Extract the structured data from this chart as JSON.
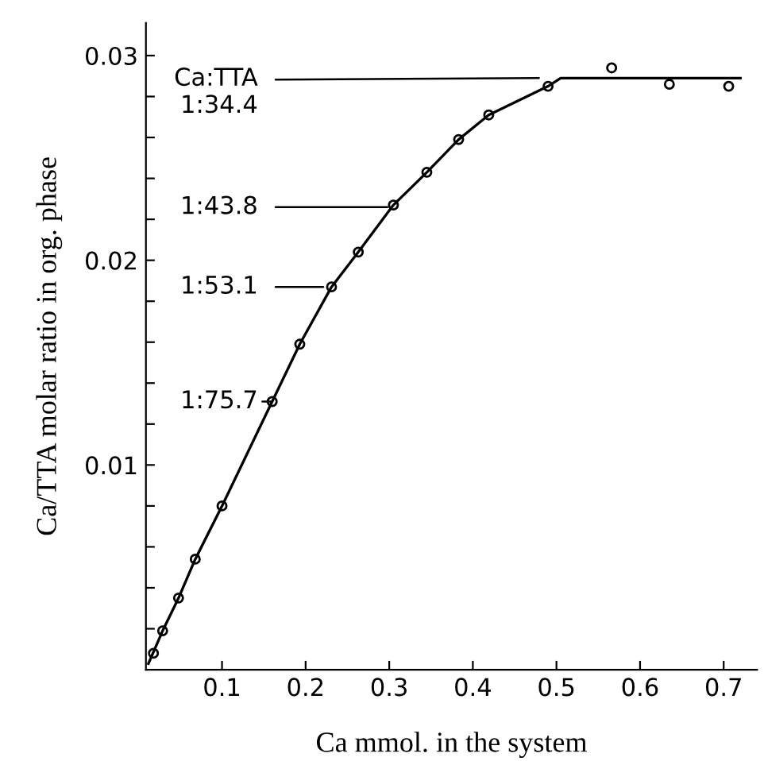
{
  "chart_data": {
    "type": "line",
    "xlabel": "Ca mmol. in the system",
    "ylabel": "Ca/TTA molar ratio in org. phase",
    "xlim": [
      0.009,
      0.74
    ],
    "ylim": [
      0,
      0.0316
    ],
    "xticks": [
      0.1,
      0.2,
      0.3,
      0.4,
      0.5,
      0.6,
      0.7
    ],
    "yticks": [
      {
        "value": 0.002,
        "label": null
      },
      {
        "value": 0.004,
        "label": null
      },
      {
        "value": 0.006,
        "label": null
      },
      {
        "value": 0.008,
        "label": null
      },
      0.01,
      {
        "value": 0.012,
        "label": null
      },
      {
        "value": 0.014,
        "label": null
      },
      {
        "value": 0.016,
        "label": null
      },
      {
        "value": 0.018,
        "label": null
      },
      0.02,
      {
        "value": 0.022,
        "label": null
      },
      {
        "value": 0.024,
        "label": null
      },
      {
        "value": 0.026,
        "label": null
      },
      {
        "value": 0.028,
        "label": null
      },
      0.03
    ],
    "grid": false,
    "legend": false,
    "series": [
      {
        "type": "scatter",
        "marker": "circle",
        "color": "#000000",
        "x": [
          0.018,
          0.029,
          0.048,
          0.068,
          0.1,
          0.16,
          0.193,
          0.231,
          0.263,
          0.305,
          0.345,
          0.383,
          0.419,
          0.49,
          0.566,
          0.635,
          0.706
        ],
        "values": [
          0.0008,
          0.0019,
          0.0035,
          0.0054,
          0.008,
          0.0131,
          0.0159,
          0.0187,
          0.0204,
          0.0227,
          0.0243,
          0.0259,
          0.0271,
          0.0285,
          0.0294,
          0.0286,
          0.0285
        ]
      },
      {
        "type": "line",
        "marker": "none",
        "color": "#000000",
        "x": [
          0.012,
          0.029,
          0.048,
          0.068,
          0.1,
          0.16,
          0.193,
          0.231,
          0.263,
          0.305,
          0.345,
          0.383,
          0.419,
          0.49,
          0.505,
          0.72
        ],
        "values": [
          0.0003,
          0.0019,
          0.0035,
          0.0054,
          0.008,
          0.0131,
          0.0159,
          0.0187,
          0.0204,
          0.0227,
          0.0243,
          0.0259,
          0.0271,
          0.0285,
          0.0289,
          0.0289
        ]
      }
    ],
    "annotations": [
      {
        "text": "Ca:TTA\n1:34.4",
        "x": 0.479,
        "y": 0.0289
      },
      "1:43.8",
      {
        "text": "1:53.1",
        "x": 0.221,
        "y": 0.0187
      },
      {
        "text": "1:75.7",
        "x": 0.16,
        "y": 0.0131
      }
    ]
  }
}
